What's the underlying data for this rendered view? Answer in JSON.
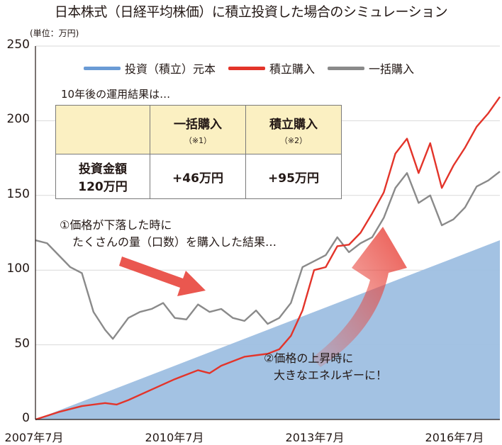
{
  "title": "日本株式（日経平均株価）に積立投資した場合のシミュレーション",
  "unit": "(単位：万円)",
  "colors": {
    "principal": "#9ebfe1",
    "legend_principal": "#6a9bd5",
    "tsumitate": "#e3342a",
    "ikkatsu": "#8a8a8a",
    "table_header": "#fbf0c2",
    "arrow": "#e8453c"
  },
  "table": {
    "note": "10年後の運用結果は…",
    "col_ikkatsu": "一括購入",
    "col_ikkatsu_note": "（※1）",
    "col_tsumitate": "積立購入",
    "col_tsumitate_note": "（※2）",
    "row_label_1": "投資金額",
    "row_label_2": "120万円",
    "val_ikkatsu": "+46万円",
    "val_tsumitate": "+95万円"
  },
  "annotations": {
    "a1_line1": "①価格が下落した時に",
    "a1_line2": "たくさんの量（口数）を購入した結果…",
    "a2_line1": "②価格の上昇時に",
    "a2_line2": "大きなエネルギーに！"
  },
  "chart_data": {
    "type": "line",
    "title": "日本株式（日経平均株価）に積立投資した場合のシミュレーション",
    "ylabel": "(単位：万円)",
    "ylim": [
      0,
      250
    ],
    "yticks": [
      0,
      50,
      100,
      150,
      200,
      250
    ],
    "xticks": [
      "2007年7月",
      "2010年7月",
      "2013年7月",
      "2016年7月"
    ],
    "xlim": [
      "2007-07",
      "2017-07"
    ],
    "legend_position": "top",
    "series": [
      {
        "name": "投資（積立）元本",
        "style": "area",
        "points": [
          [
            "2007-07",
            0
          ],
          [
            "2017-07",
            120
          ]
        ]
      },
      {
        "name": "積立購入",
        "style": "line",
        "points": [
          [
            "2007-07",
            0
          ],
          [
            "2008-01",
            5
          ],
          [
            "2008-07",
            9
          ],
          [
            "2009-01",
            11
          ],
          [
            "2009-04",
            10
          ],
          [
            "2009-07",
            13
          ],
          [
            "2010-01",
            20
          ],
          [
            "2010-07",
            27
          ],
          [
            "2011-01",
            33
          ],
          [
            "2011-04",
            31
          ],
          [
            "2011-07",
            36
          ],
          [
            "2012-01",
            42
          ],
          [
            "2012-07",
            44
          ],
          [
            "2012-10",
            47
          ],
          [
            "2013-01",
            56
          ],
          [
            "2013-04",
            73
          ],
          [
            "2013-07",
            100
          ],
          [
            "2013-10",
            102
          ],
          [
            "2014-01",
            116
          ],
          [
            "2014-04",
            117
          ],
          [
            "2014-07",
            125
          ],
          [
            "2014-10",
            138
          ],
          [
            "2015-01",
            152
          ],
          [
            "2015-04",
            178
          ],
          [
            "2015-07",
            188
          ],
          [
            "2015-10",
            165
          ],
          [
            "2016-01",
            185
          ],
          [
            "2016-04",
            155
          ],
          [
            "2016-07",
            170
          ],
          [
            "2016-10",
            182
          ],
          [
            "2017-01",
            196
          ],
          [
            "2017-04",
            205
          ],
          [
            "2017-07",
            216
          ]
        ]
      },
      {
        "name": "一括購入",
        "style": "line",
        "points": [
          [
            "2007-07",
            120
          ],
          [
            "2007-10",
            118
          ],
          [
            "2008-01",
            110
          ],
          [
            "2008-04",
            102
          ],
          [
            "2008-07",
            98
          ],
          [
            "2008-10",
            72
          ],
          [
            "2009-01",
            60
          ],
          [
            "2009-03",
            54
          ],
          [
            "2009-07",
            68
          ],
          [
            "2009-10",
            72
          ],
          [
            "2010-01",
            74
          ],
          [
            "2010-04",
            78
          ],
          [
            "2010-07",
            68
          ],
          [
            "2010-10",
            67
          ],
          [
            "2011-01",
            77
          ],
          [
            "2011-04",
            72
          ],
          [
            "2011-07",
            74
          ],
          [
            "2011-10",
            68
          ],
          [
            "2012-01",
            66
          ],
          [
            "2012-04",
            73
          ],
          [
            "2012-07",
            64
          ],
          [
            "2012-10",
            68
          ],
          [
            "2013-01",
            78
          ],
          [
            "2013-04",
            102
          ],
          [
            "2013-07",
            106
          ],
          [
            "2013-10",
            110
          ],
          [
            "2014-01",
            122
          ],
          [
            "2014-04",
            112
          ],
          [
            "2014-07",
            118
          ],
          [
            "2014-10",
            122
          ],
          [
            "2015-01",
            135
          ],
          [
            "2015-04",
            155
          ],
          [
            "2015-07",
            165
          ],
          [
            "2015-10",
            145
          ],
          [
            "2016-01",
            150
          ],
          [
            "2016-04",
            130
          ],
          [
            "2016-07",
            134
          ],
          [
            "2016-10",
            142
          ],
          [
            "2017-01",
            156
          ],
          [
            "2017-04",
            160
          ],
          [
            "2017-07",
            166
          ]
        ]
      }
    ]
  }
}
